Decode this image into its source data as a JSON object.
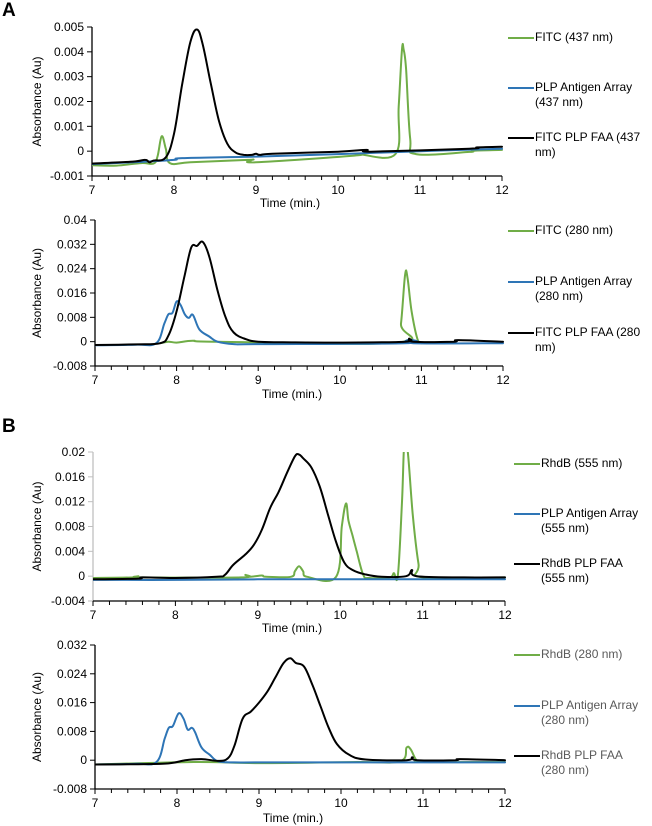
{
  "panel_labels": [
    "A",
    "B"
  ],
  "colors": {
    "green": "#70ad47",
    "blue": "#2e75b6",
    "black": "#000000",
    "gray_axis": "#bfbfbf"
  },
  "chart_data": [
    {
      "id": "A1",
      "type": "line",
      "xlabel": "Time (min.)",
      "ylabel": "Absorbance (Au)",
      "xlim": [
        7,
        12
      ],
      "ylim": [
        -0.001,
        0.005
      ],
      "xticks": [
        "7",
        "8",
        "9",
        "10",
        "11",
        "12"
      ],
      "yticks": [
        "-0.001",
        "0",
        "0.001",
        "0.002",
        "0.003",
        "0.004",
        "0.005"
      ],
      "legend": "right",
      "series": [
        {
          "name": "FITC (437 nm)",
          "color": "green",
          "x": [
            7.0,
            7.3,
            7.6,
            7.75,
            7.8,
            7.85,
            7.9,
            7.95,
            8.2,
            8.9,
            8.95,
            9.0,
            10.2,
            10.25,
            10.7,
            10.74,
            10.78,
            10.8,
            10.83,
            10.88,
            10.95,
            11.6,
            11.65,
            12.0
          ],
          "y": [
            -0.00057,
            -0.00058,
            -0.00048,
            -0.0005,
            -0.0002,
            0.0006,
            0.0001,
            -0.00048,
            -0.00045,
            -0.00035,
            -0.00035,
            -0.00045,
            -0.00018,
            -0.00012,
            -0.00012,
            0.0018,
            0.0041,
            0.0041,
            0.0033,
            0.0005,
            -0.00012,
            -3e-05,
            2e-05,
            5e-05
          ]
        },
        {
          "name": "PLP Antigen Array (437 nm)",
          "color": "blue",
          "x": [
            7.0,
            7.5,
            8.0,
            8.1,
            9.0,
            10.0,
            11.0,
            12.0
          ],
          "y": [
            -0.00052,
            -0.00045,
            -0.00035,
            -0.00028,
            -0.00022,
            -0.00012,
            0.0,
            0.0001
          ]
        },
        {
          "name": "FITC PLP FAA (437 nm)",
          "color": "black",
          "x": [
            7.0,
            7.5,
            7.65,
            7.7,
            7.75,
            7.9,
            8.0,
            8.1,
            8.2,
            8.28,
            8.35,
            8.45,
            8.55,
            8.65,
            8.75,
            8.85,
            8.95,
            9.0,
            9.05,
            9.2,
            10.0,
            10.35,
            10.4,
            11.6,
            11.7,
            12.0
          ],
          "y": [
            -0.0005,
            -0.00042,
            -0.00035,
            -0.00045,
            -0.00038,
            -0.00025,
            0.0007,
            0.0027,
            0.0044,
            0.0049,
            0.0043,
            0.0027,
            0.0012,
            0.0003,
            -5e-05,
            -0.00015,
            -0.00015,
            -0.0001,
            -0.00015,
            -0.0001,
            -2e-05,
            5e-05,
            -2e-05,
            0.0001,
            0.00015,
            0.00018
          ]
        }
      ]
    },
    {
      "id": "A2",
      "type": "line",
      "xlabel": "Time (min.)",
      "ylabel": "Absorbance (Au)",
      "xlim": [
        7,
        12
      ],
      "ylim": [
        -0.008,
        0.04
      ],
      "xticks": [
        "7",
        "8",
        "9",
        "10",
        "11",
        "12"
      ],
      "yticks": [
        "-0.008",
        "0",
        "0.008",
        "0.016",
        "0.024",
        "0.032",
        "0.04"
      ],
      "legend": "right",
      "series": [
        {
          "name": "FITC (280 nm)",
          "color": "green",
          "x": [
            7.8,
            7.9,
            8.0,
            8.2,
            8.5,
            10.7,
            10.75,
            10.8,
            10.83,
            10.88,
            10.95,
            11.0
          ],
          "y": [
            -0.0005,
            0.0,
            -0.0003,
            0.0003,
            0.0,
            -0.0003,
            0.006,
            0.022,
            0.021,
            0.01,
            0.001,
            -0.0005
          ]
        },
        {
          "name": "PLP Antigen Array (280 nm)",
          "color": "blue",
          "x": [
            7.0,
            7.5,
            7.75,
            7.85,
            7.9,
            7.95,
            8.0,
            8.05,
            8.1,
            8.15,
            8.2,
            8.28,
            8.4,
            8.5,
            8.7,
            9.0,
            10.8,
            10.85,
            10.9,
            12.0
          ],
          "y": [
            -0.0012,
            -0.001,
            -0.0005,
            0.006,
            0.009,
            0.0095,
            0.0132,
            0.012,
            0.009,
            0.0078,
            0.0088,
            0.004,
            0.0017,
            0.0,
            -0.0008,
            -0.0008,
            -0.0005,
            0.0007,
            -0.0005,
            -0.0005
          ]
        },
        {
          "name": "FITC PLP FAA (280 nm)",
          "color": "black",
          "x": [
            7.0,
            7.5,
            7.8,
            7.9,
            8.0,
            8.1,
            8.18,
            8.25,
            8.32,
            8.4,
            8.5,
            8.6,
            8.7,
            8.85,
            9.0,
            9.3,
            10.0,
            10.8,
            10.85,
            10.9,
            11.4,
            11.45,
            12.0
          ],
          "y": [
            -0.0011,
            -0.0009,
            -0.0005,
            0.002,
            0.01,
            0.022,
            0.031,
            0.0315,
            0.0328,
            0.028,
            0.017,
            0.008,
            0.003,
            0.0008,
            0.0,
            -0.0002,
            -0.0003,
            0.0,
            0.001,
            0.0,
            0.0,
            0.0005,
            0.0
          ]
        }
      ]
    },
    {
      "id": "B1",
      "type": "line",
      "xlabel": "Time (min.)",
      "ylabel": "Absorbance (Au)",
      "xlim": [
        7,
        12
      ],
      "ylim": [
        -0.004,
        0.02
      ],
      "xticks": [
        "7",
        "8",
        "9",
        "10",
        "11",
        "12"
      ],
      "yticks": [
        "-0.004",
        "0",
        "0.004",
        "0.008",
        "0.012",
        "0.016",
        "0.02"
      ],
      "legend": "right",
      "series": [
        {
          "name": "RhdB (555 nm)",
          "color": "green",
          "x": [
            7.0,
            7.5,
            7.55,
            7.6,
            8.8,
            8.85,
            8.9,
            9.05,
            9.1,
            9.4,
            9.45,
            9.5,
            9.55,
            9.6,
            9.95,
            10.02,
            10.07,
            10.1,
            10.15,
            10.2,
            10.28,
            10.35,
            10.6,
            10.65,
            10.7,
            10.75,
            10.78,
            10.82,
            10.88,
            10.95,
            11.0,
            12.0
          ],
          "y": [
            -0.0003,
            -0.0002,
            0.0,
            -0.0002,
            -0.0002,
            0.0002,
            -0.0001,
            0.0001,
            -0.0001,
            -0.0001,
            0.0008,
            0.0016,
            0.0008,
            -0.0001,
            -0.0001,
            0.008,
            0.0117,
            0.009,
            0.0065,
            0.004,
            0.0002,
            -0.0003,
            -0.0002,
            0.0005,
            0.0002,
            0.012,
            0.022,
            0.02,
            0.01,
            0.002,
            -0.0002,
            -0.0002
          ]
        },
        {
          "name": "PLP Antigen Array (555 nm)",
          "color": "blue",
          "x": [
            7.0,
            8.0,
            9.0,
            10.0,
            11.0,
            12.0
          ],
          "y": [
            -0.0006,
            -0.0006,
            -0.0005,
            -0.0005,
            -0.0005,
            -0.0005
          ]
        },
        {
          "name": "RhdB PLP FAA (555 nm)",
          "color": "black",
          "x": [
            7.0,
            7.55,
            7.6,
            8.0,
            8.5,
            8.6,
            8.7,
            8.85,
            8.95,
            9.05,
            9.15,
            9.25,
            9.35,
            9.45,
            9.5,
            9.55,
            9.65,
            9.75,
            9.85,
            9.95,
            10.05,
            10.15,
            10.3,
            10.5,
            10.8,
            10.87,
            10.93,
            11.5,
            12.0
          ],
          "y": [
            -0.0005,
            -0.0004,
            -0.0002,
            -0.0003,
            -0.0001,
            0.0002,
            0.0018,
            0.0035,
            0.005,
            0.0075,
            0.011,
            0.0135,
            0.0165,
            0.0193,
            0.0196,
            0.019,
            0.0175,
            0.0145,
            0.01,
            0.0055,
            0.0022,
            0.001,
            0.0003,
            -0.0001,
            0.0,
            0.001,
            0.0,
            -0.0002,
            -0.0002
          ]
        }
      ]
    },
    {
      "id": "B2",
      "type": "line",
      "xlabel": "Time (min.)",
      "ylabel": "Absorbance (Au)",
      "xlim": [
        7,
        12
      ],
      "ylim": [
        -0.008,
        0.032
      ],
      "xticks": [
        "7",
        "8",
        "9",
        "10",
        "11",
        "12"
      ],
      "yticks": [
        "-0.008",
        "0",
        "0.008",
        "0.016",
        "0.024",
        "0.032"
      ],
      "legend": "right",
      "series": [
        {
          "name": "RhdB (280 nm)",
          "color": "green",
          "x": [
            7.0,
            8.2,
            9.0,
            10.2,
            10.72,
            10.8,
            10.85,
            10.92,
            11.0,
            12.0
          ],
          "y": [
            -0.0012,
            -0.0005,
            -0.0008,
            -0.0005,
            -0.0003,
            0.0035,
            0.003,
            0.0,
            -0.0005,
            -0.0005
          ]
        },
        {
          "name": "PLP Antigen Array (280 nm)",
          "color": "blue",
          "x": [
            7.0,
            7.5,
            7.75,
            7.85,
            7.9,
            7.95,
            8.02,
            8.08,
            8.13,
            8.18,
            8.22,
            8.3,
            8.4,
            8.5,
            8.7,
            9.0,
            10.0,
            11.0,
            12.0
          ],
          "y": [
            -0.0012,
            -0.001,
            -0.0005,
            0.006,
            0.009,
            0.0095,
            0.013,
            0.0115,
            0.0085,
            0.009,
            0.0078,
            0.0035,
            0.0015,
            -0.0003,
            -0.0006,
            -0.0006,
            -0.0006,
            -0.0006,
            -0.0006
          ]
        },
        {
          "name": "RhdB PLP FAA (280 nm)",
          "color": "black",
          "x": [
            7.0,
            7.5,
            7.9,
            8.1,
            8.3,
            8.5,
            8.62,
            8.7,
            8.8,
            8.9,
            9.0,
            9.1,
            9.2,
            9.3,
            9.38,
            9.45,
            9.55,
            9.65,
            9.75,
            9.85,
            9.95,
            10.1,
            10.3,
            10.8,
            10.87,
            10.93,
            11.4,
            11.45,
            12.0
          ],
          "y": [
            -0.0012,
            -0.0011,
            -0.0009,
            0.0,
            0.0003,
            -0.0002,
            0.0005,
            0.004,
            0.0115,
            0.0135,
            0.016,
            0.019,
            0.023,
            0.027,
            0.0283,
            0.027,
            0.026,
            0.021,
            0.015,
            0.009,
            0.0045,
            0.0015,
            0.0002,
            0.0,
            0.0008,
            0.0,
            0.0,
            0.0003,
            0.0
          ]
        }
      ]
    }
  ]
}
